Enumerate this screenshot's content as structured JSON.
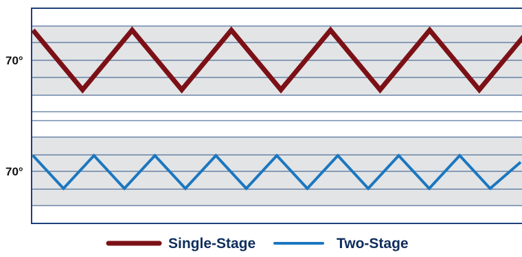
{
  "chart_data": {
    "type": "line",
    "colors": {
      "single_stage": "#7b1116",
      "two_stage": "#1b77c0",
      "frame": "#1c3f7a",
      "band_fill": "#e2e4e6",
      "band_lines": "#2b4f84",
      "legend_text": "#0f2d5c"
    },
    "grid": true,
    "legend_position": "bottom-center",
    "panels": [
      {
        "name": "single-stage",
        "ylabel": "70°",
        "series": [
          {
            "name": "Single-Stage",
            "color": "#7b1116",
            "x": [
              0,
              1,
              2,
              3,
              4,
              5,
              6,
              7,
              8,
              9,
              10
            ],
            "y": [
              1,
              -1,
              1,
              -1,
              1,
              -1,
              1,
              -1,
              1,
              -1,
              1
            ]
          }
        ]
      },
      {
        "name": "two-stage",
        "ylabel": "70°",
        "series": [
          {
            "name": "Two-Stage",
            "color": "#1b77c0",
            "x": [
              0,
              1,
              2,
              3,
              4,
              5,
              6,
              7,
              8,
              9,
              10,
              11,
              12,
              13,
              14,
              15,
              16
            ],
            "y": [
              1,
              -1,
              1,
              -1,
              1,
              -1,
              1,
              -1,
              1,
              -1,
              1,
              -1,
              1,
              -1,
              1,
              -1,
              0.6
            ]
          }
        ]
      }
    ],
    "legend": [
      {
        "label": "Single-Stage",
        "color": "#7b1116"
      },
      {
        "label": "Two-Stage",
        "color": "#1b77c0"
      }
    ]
  }
}
